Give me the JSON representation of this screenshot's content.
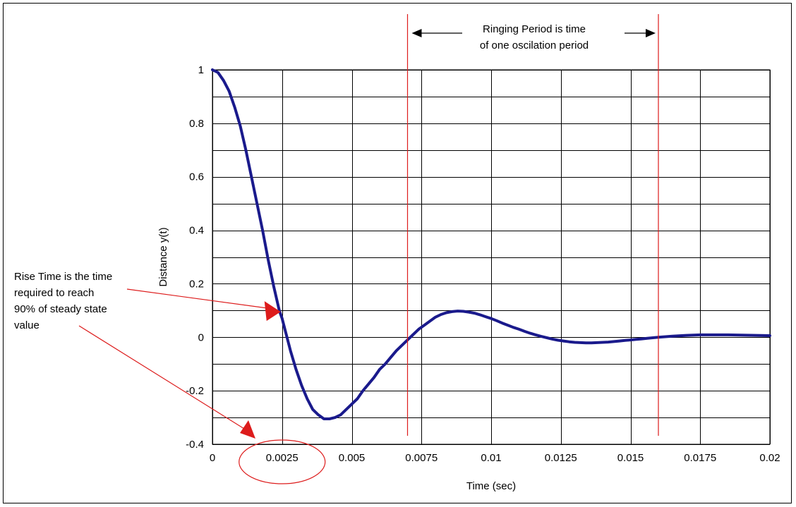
{
  "chart_data": {
    "type": "line",
    "title": "",
    "xlabel": "Time (sec)",
    "ylabel": "Distance y(t)",
    "xlim": [
      0,
      0.02
    ],
    "ylim": [
      -0.4,
      1
    ],
    "x_ticks": [
      0,
      0.0025,
      0.005,
      0.0075,
      0.01,
      0.0125,
      0.015,
      0.0175,
      0.02
    ],
    "x_tick_labels": [
      "0",
      "0.0025",
      "0.005",
      "0.0075",
      "0.01",
      "0.0125",
      "0.015",
      "0.0175",
      "0.02"
    ],
    "y_ticks": [
      -0.4,
      -0.2,
      0,
      0.2,
      0.4,
      0.6,
      0.8,
      1
    ],
    "y_tick_labels": [
      "-0.4",
      "-0.2",
      "0",
      "0.2",
      "0.4",
      "0.6",
      "0.8",
      "1"
    ],
    "grid": true,
    "series": [
      {
        "color": "#1a1a8c",
        "x": [
          0,
          0.0002,
          0.0004,
          0.0006,
          0.0008,
          0.001,
          0.0012,
          0.0014,
          0.0016,
          0.0018,
          0.002,
          0.0022,
          0.0024,
          0.0025,
          0.0026,
          0.0028,
          0.003,
          0.0032,
          0.0034,
          0.0036,
          0.0038,
          0.004,
          0.0042,
          0.0044,
          0.0046,
          0.0048,
          0.005,
          0.0052,
          0.0054,
          0.0056,
          0.0058,
          0.006,
          0.0062,
          0.0064,
          0.0066,
          0.0068,
          0.007,
          0.0072,
          0.0074,
          0.0076,
          0.0078,
          0.008,
          0.0082,
          0.0084,
          0.0086,
          0.0088,
          0.009,
          0.0092,
          0.0094,
          0.0096,
          0.0098,
          0.01,
          0.0102,
          0.0104,
          0.0106,
          0.0108,
          0.011,
          0.0112,
          0.0114,
          0.0116,
          0.0118,
          0.012,
          0.0122,
          0.0124,
          0.0126,
          0.0128,
          0.013,
          0.0132,
          0.0134,
          0.0136,
          0.0138,
          0.014,
          0.0142,
          0.0144,
          0.0146,
          0.0148,
          0.015,
          0.0152,
          0.0154,
          0.0156,
          0.0158,
          0.016,
          0.0165,
          0.017,
          0.0175,
          0.018,
          0.0185,
          0.019,
          0.0195,
          0.02
        ],
        "y": [
          1.0,
          0.99,
          0.96,
          0.92,
          0.86,
          0.79,
          0.7,
          0.6,
          0.5,
          0.4,
          0.29,
          0.19,
          0.1,
          0.07,
          0.03,
          -0.05,
          -0.12,
          -0.18,
          -0.23,
          -0.27,
          -0.29,
          -0.305,
          -0.305,
          -0.3,
          -0.29,
          -0.27,
          -0.25,
          -0.23,
          -0.2,
          -0.175,
          -0.15,
          -0.12,
          -0.1,
          -0.075,
          -0.05,
          -0.03,
          -0.01,
          0.01,
          0.03,
          0.045,
          0.06,
          0.075,
          0.085,
          0.092,
          0.096,
          0.098,
          0.097,
          0.094,
          0.09,
          0.084,
          0.077,
          0.07,
          0.062,
          0.053,
          0.045,
          0.037,
          0.03,
          0.022,
          0.015,
          0.009,
          0.003,
          -0.002,
          -0.007,
          -0.011,
          -0.014,
          -0.017,
          -0.019,
          -0.02,
          -0.021,
          -0.021,
          -0.02,
          -0.019,
          -0.018,
          -0.016,
          -0.014,
          -0.012,
          -0.01,
          -0.008,
          -0.006,
          -0.004,
          -0.002,
          0.0,
          0.004,
          0.007,
          0.009,
          0.009,
          0.009,
          0.008,
          0.007,
          0.006
        ]
      }
    ],
    "annotations": {
      "rise_time_lines": [
        "Rise Time is the time",
        "required to reach",
        "90% of steady state",
        "value"
      ],
      "ringing_lines": [
        "Ringing Period is time",
        "of one oscilation period"
      ],
      "rise_point": {
        "x": 0.0025,
        "y": 0.09
      },
      "rise_tick_x": 0.0025,
      "ringing_marker_x": [
        0.007,
        0.016
      ],
      "marker_color": "#dd1c1c"
    }
  }
}
